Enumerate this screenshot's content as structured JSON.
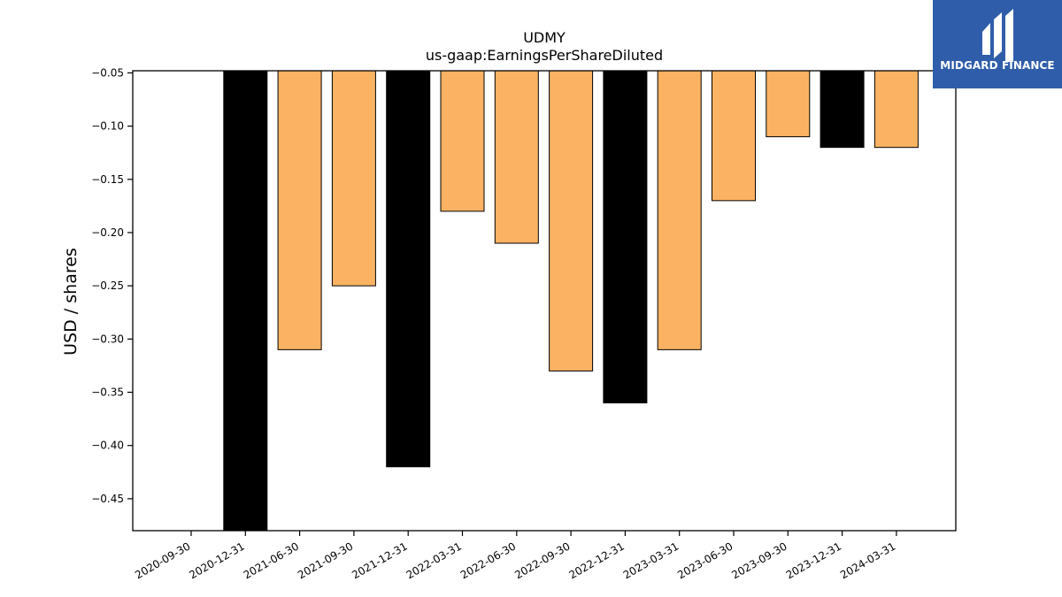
{
  "logo": {
    "text": "MIDGARD FINANCE",
    "background": "#2f5daa"
  },
  "chart_data": {
    "type": "bar",
    "title": "UDMY",
    "subtitle": "us-gaap:EarningsPerShareDiluted",
    "ylabel": "USD / shares",
    "xlabel": "",
    "ylim": [
      -0.48,
      -0.048
    ],
    "yticks": [
      "−0.05",
      "−0.10",
      "−0.15",
      "−0.20",
      "−0.25",
      "−0.30",
      "−0.35",
      "−0.40",
      "−0.45"
    ],
    "ytick_values": [
      -0.05,
      -0.1,
      -0.15,
      -0.2,
      -0.25,
      -0.3,
      -0.35,
      -0.4,
      -0.45
    ],
    "categories": [
      "2020-09-30",
      "2020-12-31",
      "2021-06-30",
      "2021-09-30",
      "2021-12-31",
      "2022-03-31",
      "2022-06-30",
      "2022-09-30",
      "2022-12-31",
      "2023-03-31",
      "2023-06-30",
      "2023-09-30",
      "2023-12-31",
      "2024-03-31"
    ],
    "values": [
      null,
      -0.48,
      -0.31,
      -0.25,
      -0.42,
      -0.18,
      -0.21,
      -0.33,
      -0.36,
      -0.31,
      -0.17,
      -0.11,
      -0.12,
      -0.12
    ],
    "bar_colors": [
      "#fbb363",
      "#000000",
      "#fbb363",
      "#fbb363",
      "#000000",
      "#fbb363",
      "#fbb363",
      "#fbb363",
      "#000000",
      "#fbb363",
      "#fbb363",
      "#fbb363",
      "#000000",
      "#fbb363"
    ],
    "grid": false,
    "legend": "none"
  }
}
